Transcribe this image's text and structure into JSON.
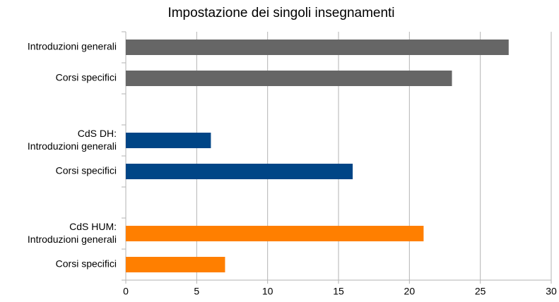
{
  "chart_data": {
    "type": "hbar",
    "title": "Impostazione dei singoli insegnamenti",
    "categories": [
      "Introduzioni generali",
      "Corsi specifici",
      null,
      "CdS DH:\nIntroduzioni generali",
      "Corsi specifici",
      null,
      "CdS HUM:\nIntroduzioni generali",
      "Corsi specifici"
    ],
    "values": [
      27,
      23,
      null,
      6,
      16,
      null,
      21,
      7
    ],
    "colors": [
      "#666666",
      "#666666",
      null,
      "#004586",
      "#004586",
      null,
      "#ff7f00",
      "#ff7f00"
    ],
    "xlim": [
      0,
      30
    ],
    "xticks": [
      0,
      5,
      10,
      15,
      20,
      25,
      30
    ],
    "grid": true
  }
}
